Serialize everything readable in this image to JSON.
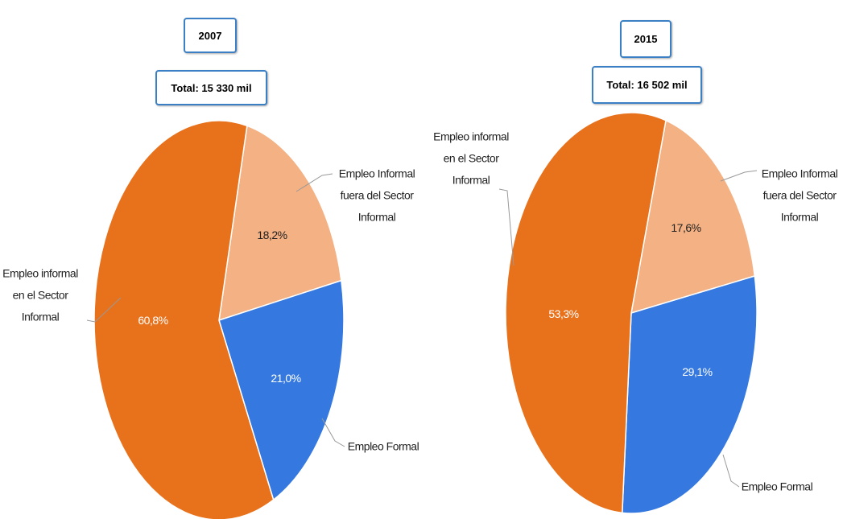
{
  "chart_data": [
    {
      "type": "pie",
      "title": "2007",
      "subtitle": "Total:  15 330 mil",
      "categories": [
        "Empleo Informal fuera del Sector Informal",
        "Empleo Formal",
        "Empleo informal en el Sector Informal"
      ],
      "values": [
        18.2,
        21.0,
        60.8
      ],
      "value_labels": [
        "18,2%",
        "21,0%",
        "60,8%"
      ],
      "colors": [
        "#f4b183",
        "#3579e0",
        "#e8711c"
      ]
    },
    {
      "type": "pie",
      "title": "2015",
      "subtitle": "Total:  16 502 mil",
      "categories": [
        "Empleo Informal fuera del Sector Informal",
        "Empleo Formal",
        "Empleo informal en el Sector Informal"
      ],
      "values": [
        17.6,
        29.1,
        53.3
      ],
      "value_labels": [
        "17,6%",
        "29,1%",
        "53,3%"
      ],
      "colors": [
        "#f4b183",
        "#3579e0",
        "#e8711c"
      ]
    }
  ]
}
